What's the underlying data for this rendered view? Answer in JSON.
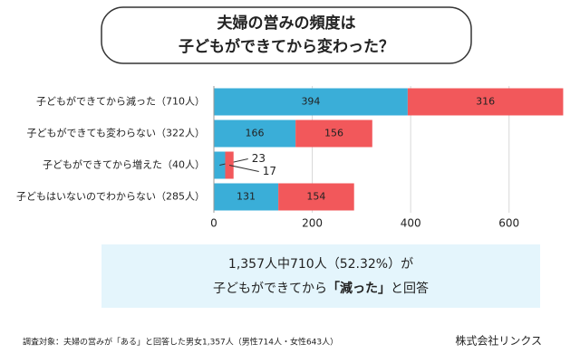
{
  "chart_data": {
    "type": "bar",
    "orientation": "horizontal",
    "stacked": true,
    "title_lines": [
      "夫婦の営みの頻度は",
      "子どもができてから変わった？"
    ],
    "categories": [
      "子どもができてから減った（710人）",
      "子どもができても変わらない（322人）",
      "子どもができてから増えた（40人）",
      "子どもはいないのでわからない（285人）"
    ],
    "series": [
      {
        "color": "#3aaed8",
        "values": [
          394,
          166,
          23,
          131
        ]
      },
      {
        "color": "#f2585b",
        "values": [
          316,
          156,
          17,
          154
        ]
      }
    ],
    "xlim": [
      0,
      700
    ],
    "xticks": [
      0,
      200,
      400,
      600
    ],
    "grid": true,
    "summary": {
      "line1": "1,357人中710人（52.32%）が",
      "line2": [
        "子どもができてから",
        "「減った」",
        "と回答"
      ]
    },
    "footnote": "調査対象：夫婦の営みが「ある」と回答した男女1,357人（男性714人・女性643人）",
    "source": "株式会社リンクス"
  }
}
